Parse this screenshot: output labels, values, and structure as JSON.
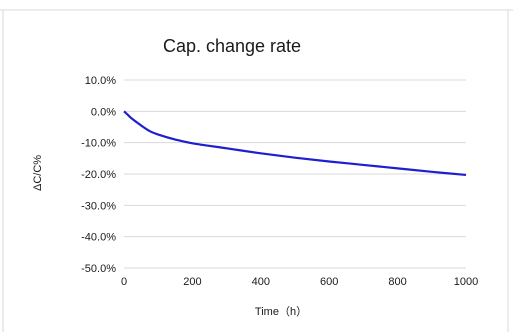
{
  "chart_data": {
    "type": "line",
    "title": "Cap. change rate",
    "xlabel": "Time（h）",
    "ylabel": "ΔC/C%",
    "xlim": [
      0,
      1000
    ],
    "ylim": [
      -50,
      10
    ],
    "x_ticks": [
      0,
      200,
      400,
      600,
      800,
      1000
    ],
    "x_tick_labels": [
      "0",
      "200",
      "400",
      "600",
      "800",
      "1000"
    ],
    "y_ticks": [
      10,
      0,
      -10,
      -20,
      -30,
      -40,
      -50
    ],
    "y_tick_labels": [
      "10.0%",
      "0.0%",
      "-10.0%",
      "-20.0%",
      "-30.0%",
      "-40.0%",
      "-50.0%"
    ],
    "grid": "horizontal",
    "legend": "none",
    "series": [
      {
        "color": "#1f1fcf",
        "x": [
          0,
          10,
          25,
          50,
          75,
          100,
          150,
          200,
          300,
          400,
          500,
          600,
          700,
          800,
          900,
          1000
        ],
        "y": [
          0,
          -1.0,
          -2.5,
          -4.5,
          -6.3,
          -7.4,
          -9.0,
          -10.2,
          -11.8,
          -13.4,
          -14.8,
          -16.0,
          -17.1,
          -18.2,
          -19.3,
          -20.3
        ]
      }
    ]
  }
}
